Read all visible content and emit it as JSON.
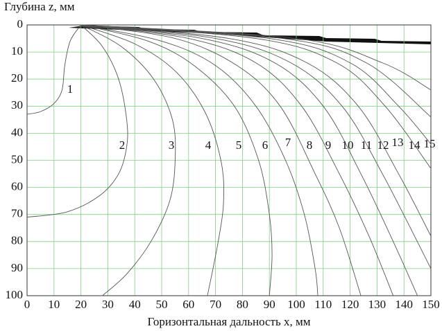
{
  "chart_data": {
    "type": "line",
    "ylabel": "Глубина z, мм",
    "xlabel": "Горизонтальная дальность x, мм",
    "xlim": [
      0,
      150
    ],
    "ylim": [
      0,
      100
    ],
    "y_inverted": true,
    "grid": true,
    "xticks": [
      0,
      10,
      20,
      30,
      40,
      50,
      60,
      70,
      80,
      90,
      100,
      110,
      120,
      130,
      140,
      150
    ],
    "yticks": [
      0,
      10,
      20,
      30,
      40,
      50,
      60,
      70,
      80,
      90,
      100
    ],
    "series": [
      {
        "name": "1",
        "color": "#555555",
        "x": [
          20,
          16,
          14,
          13,
          10,
          5,
          0
        ],
        "values": [
          0,
          6,
          15,
          24,
          29,
          32,
          33
        ]
      },
      {
        "name": "2",
        "color": "#555555",
        "x": [
          20,
          28,
          34,
          37,
          37,
          34,
          27,
          15,
          0
        ],
        "values": [
          0,
          8,
          20,
          35,
          45,
          55,
          63,
          69,
          71
        ]
      },
      {
        "name": "3",
        "color": "#555555",
        "x": [
          20,
          35,
          47,
          54,
          55,
          53,
          46,
          37,
          28
        ],
        "values": [
          0,
          8,
          20,
          35,
          50,
          65,
          80,
          92,
          100
        ]
      },
      {
        "name": "4",
        "color": "#555555",
        "x": [
          20,
          40,
          55,
          66,
          72,
          73,
          71,
          67
        ],
        "values": [
          0,
          7,
          17,
          32,
          50,
          65,
          80,
          100
        ]
      },
      {
        "name": "5",
        "color": "#555555",
        "x": [
          20,
          45,
          62,
          77,
          86,
          90,
          91,
          90
        ],
        "values": [
          0,
          6,
          15,
          30,
          50,
          70,
          85,
          100
        ]
      },
      {
        "name": "6",
        "color": "#555555",
        "x": [
          20,
          50,
          70,
          85,
          96,
          103,
          107,
          108
        ],
        "values": [
          0,
          6,
          15,
          30,
          50,
          70,
          90,
          100
        ]
      },
      {
        "name": "7",
        "color": "#555555",
        "x": [
          20,
          55,
          78,
          94,
          107,
          116,
          124
        ],
        "values": [
          0,
          5,
          15,
          30,
          55,
          75,
          100
        ]
      },
      {
        "name": "8",
        "color": "#555555",
        "x": [
          20,
          60,
          85,
          102,
          116,
          127,
          136
        ],
        "values": [
          0,
          5,
          14,
          30,
          55,
          78,
          100
        ]
      },
      {
        "name": "9",
        "color": "#555555",
        "x": [
          20,
          65,
          92,
          110,
          124,
          136,
          145
        ],
        "values": [
          0,
          5,
          14,
          30,
          55,
          80,
          100
        ]
      },
      {
        "name": "10",
        "color": "#555555",
        "x": [
          20,
          70,
          98,
          117,
          132,
          150
        ],
        "values": [
          0,
          5,
          14,
          30,
          55,
          90
        ]
      },
      {
        "name": "11",
        "color": "#555555",
        "x": [
          20,
          75,
          104,
          123,
          138,
          150
        ],
        "values": [
          0,
          5,
          14,
          30,
          55,
          78
        ]
      },
      {
        "name": "12",
        "color": "#555555",
        "x": [
          20,
          85,
          115,
          133,
          150
        ],
        "values": [
          0,
          5,
          14,
          30,
          53
        ]
      },
      {
        "name": "13",
        "color": "#555555",
        "x": [
          20,
          90,
          120,
          138,
          150
        ],
        "values": [
          0,
          5,
          14,
          30,
          44
        ]
      },
      {
        "name": "14",
        "color": "#555555",
        "x": [
          20,
          95,
          126,
          150
        ],
        "values": [
          0,
          5,
          14,
          34
        ]
      },
      {
        "name": "15",
        "color": "#555555",
        "x": [
          20,
          100,
          132,
          150
        ],
        "values": [
          0,
          5,
          14,
          24
        ]
      }
    ]
  }
}
